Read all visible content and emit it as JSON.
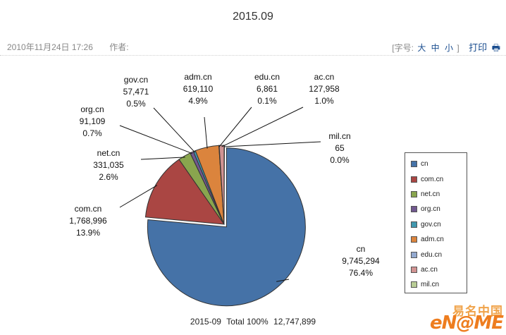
{
  "page": {
    "title": "2015.09",
    "date": "2010年11月24日 17:26",
    "author_label": "作者:",
    "font_size_label": "[字号:",
    "font_size_options": [
      "大",
      "中",
      "小"
    ],
    "font_size_close": "]",
    "print_label": "打印",
    "print_icon": "printer-icon"
  },
  "chart_data": {
    "type": "pie",
    "categories": [
      "cn",
      "com.cn",
      "net.cn",
      "org.cn",
      "gov.cn",
      "adm.cn",
      "edu.cn",
      "ac.cn",
      "mil.cn"
    ],
    "values": [
      9745294,
      1768996,
      331035,
      91109,
      57471,
      619110,
      6861,
      127958,
      65
    ],
    "value_labels": [
      "9,745,294",
      "1,768,996",
      "331,035",
      "91,109",
      "57,471",
      "619,110",
      "6,861",
      "127,958",
      "65"
    ],
    "percent_labels": [
      "76.4%",
      "13.9%",
      "2.6%",
      "0.7%",
      "0.5%",
      "4.9%",
      "0.1%",
      "1.0%",
      "0.0%"
    ],
    "colors": [
      "#4572a7",
      "#aa4643",
      "#89a54e",
      "#71588f",
      "#4198af",
      "#db843d",
      "#93a9cf",
      "#d19392",
      "#b9cd96"
    ],
    "legend_position": "right",
    "total_label": "2015-09",
    "total_text": "Total 100%",
    "total_value": "12,747,899"
  },
  "watermark": {
    "cn": "易名中国",
    "en": "eN@ME"
  }
}
